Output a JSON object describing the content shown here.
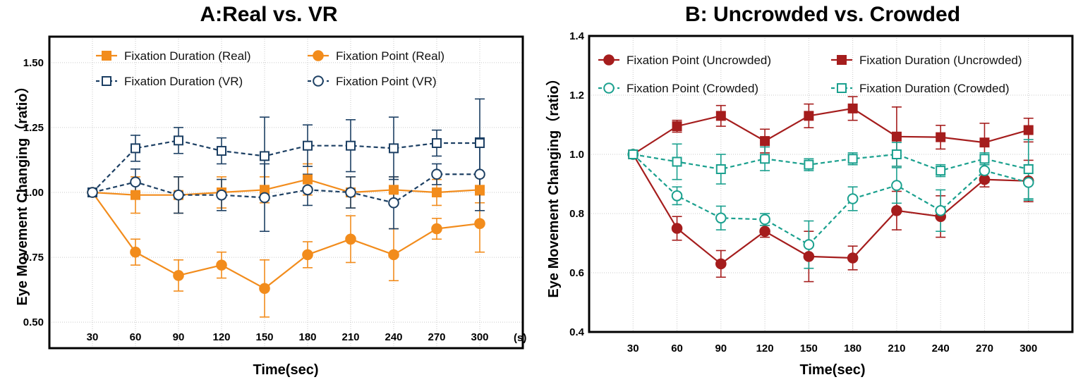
{
  "chart_data": [
    {
      "type": "line",
      "title": "A:Real vs. VR",
      "xlabel": "Time(sec)",
      "x_unit_label": "(s)",
      "ylabel": "Eye Movement Changing（ratio）",
      "x": [
        30,
        60,
        90,
        120,
        150,
        180,
        210,
        240,
        270,
        300
      ],
      "xlim": [
        0,
        330
      ],
      "ylim": [
        0.4,
        1.6
      ],
      "yticks": [
        0.5,
        0.75,
        1.0,
        1.25,
        1.5
      ],
      "ytick_labels": [
        "0.50",
        "0.75",
        "1.00",
        "1.25",
        "1.50"
      ],
      "grid": true,
      "legend": "top",
      "series": [
        {
          "name": "Fixation Duration (Real)",
          "color": "#f28c1c",
          "marker": "square",
          "filled": true,
          "dashed": false,
          "values": [
            1.0,
            0.99,
            0.99,
            1.0,
            1.01,
            1.05,
            1.0,
            1.01,
            1.0,
            1.01
          ],
          "error": [
            0,
            0.07,
            0.07,
            0.06,
            0.05,
            0.06,
            0.06,
            0.05,
            0.05,
            0.05
          ]
        },
        {
          "name": "Fixation Point (Real)",
          "color": "#f28c1c",
          "marker": "circle",
          "filled": true,
          "dashed": false,
          "values": [
            1.0,
            0.77,
            0.68,
            0.72,
            0.63,
            0.76,
            0.82,
            0.76,
            0.86,
            0.88
          ],
          "error": [
            0,
            0.05,
            0.06,
            0.05,
            0.11,
            0.05,
            0.09,
            0.1,
            0.04,
            0.11
          ]
        },
        {
          "name": "Fixation Duration (VR)",
          "color": "#1c3f63",
          "marker": "square",
          "filled": false,
          "dashed": true,
          "values": [
            1.0,
            1.17,
            1.2,
            1.16,
            1.14,
            1.18,
            1.18,
            1.17,
            1.19,
            1.19
          ],
          "error": [
            0,
            0.05,
            0.05,
            0.05,
            0.15,
            0.08,
            0.1,
            0.12,
            0.05,
            0.17
          ]
        },
        {
          "name": "Fixation Point (VR)",
          "color": "#1c3f63",
          "marker": "circle",
          "filled": false,
          "dashed": true,
          "values": [
            1.0,
            1.04,
            0.99,
            0.99,
            0.98,
            1.01,
            1.0,
            0.96,
            1.07,
            1.07
          ],
          "error": [
            0,
            0.05,
            0.07,
            0.06,
            0.13,
            0.06,
            0.06,
            0.1,
            0.04,
            0.14
          ]
        }
      ]
    },
    {
      "type": "line",
      "title": "B: Uncrowded vs. Crowded",
      "xlabel": "Time(sec)",
      "ylabel": "Eye Movement Changing（ratio）",
      "x": [
        30,
        60,
        90,
        120,
        150,
        180,
        210,
        240,
        270,
        300
      ],
      "xlim": [
        0,
        330
      ],
      "ylim": [
        0.4,
        1.4
      ],
      "yticks": [
        0.4,
        0.6,
        0.8,
        1.0,
        1.2,
        1.4
      ],
      "ytick_labels": [
        "0.4",
        "0.6",
        "0.8",
        "1.0",
        "1.2",
        "1.4"
      ],
      "grid": true,
      "legend": "top",
      "series": [
        {
          "name": "Fixation Point (Uncrowded)",
          "color": "#a51d1d",
          "marker": "circle",
          "filled": true,
          "dashed": false,
          "values": [
            1.0,
            0.75,
            0.63,
            0.74,
            0.655,
            0.65,
            0.81,
            0.79,
            0.915,
            0.91
          ],
          "error": [
            0,
            0.04,
            0.045,
            0.02,
            0.085,
            0.04,
            0.065,
            0.07,
            0.025,
            0.07
          ]
        },
        {
          "name": "Fixation Duration (Uncrowded)",
          "color": "#a51d1d",
          "marker": "square",
          "filled": true,
          "dashed": false,
          "values": [
            1.0,
            1.095,
            1.13,
            1.045,
            1.13,
            1.155,
            1.06,
            1.058,
            1.04,
            1.082
          ],
          "error": [
            0,
            0.02,
            0.035,
            0.04,
            0.04,
            0.04,
            0.1,
            0.04,
            0.065,
            0.04
          ]
        },
        {
          "name": "Fixation Point (Crowded)",
          "color": "#1aa08e",
          "marker": "circle",
          "filled": false,
          "dashed": true,
          "values": [
            1.0,
            0.86,
            0.785,
            0.78,
            0.695,
            0.85,
            0.895,
            0.81,
            0.945,
            0.905
          ],
          "error": [
            0,
            0.03,
            0.04,
            0.02,
            0.08,
            0.04,
            0.06,
            0.07,
            0.04,
            0.06
          ]
        },
        {
          "name": "Fixation Duration (Crowded)",
          "color": "#1aa08e",
          "marker": "square",
          "filled": false,
          "dashed": true,
          "values": [
            1.0,
            0.975,
            0.95,
            0.985,
            0.965,
            0.985,
            1.0,
            0.945,
            0.985,
            0.95
          ],
          "error": [
            0,
            0.06,
            0.05,
            0.04,
            0.02,
            0.02,
            0.04,
            0.02,
            0.02,
            0.1
          ]
        }
      ]
    }
  ]
}
